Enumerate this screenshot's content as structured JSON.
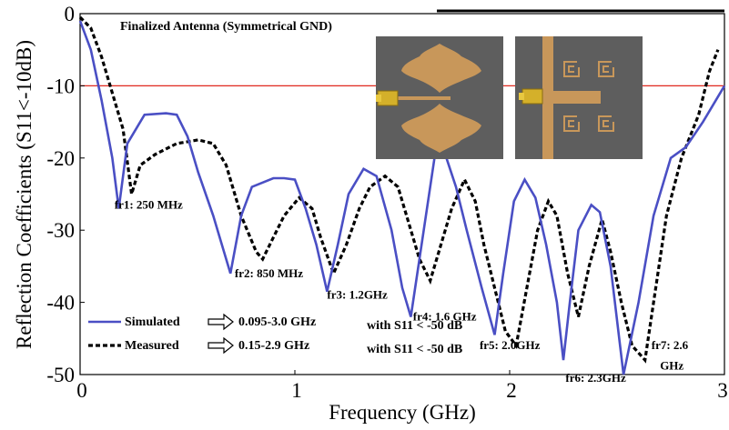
{
  "chart_data": {
    "type": "line",
    "title": "Finalized Antenna (Symmetrical GND)",
    "xlabel": "Frequency (GHz)",
    "ylabel": "Reflection Coefficients (S11<-10dB)",
    "xlim": [
      0,
      3
    ],
    "ylim": [
      -50,
      0
    ],
    "xticks": [
      "0",
      "1",
      "2",
      "3"
    ],
    "yticks": [
      "0",
      "-10",
      "-20",
      "-30",
      "-40",
      "-50"
    ],
    "reference_line": {
      "y": -10,
      "color": "#e0281e"
    },
    "grid": false,
    "legend_position": "bottom-left",
    "series": [
      {
        "name": "Simulated",
        "style": "solid",
        "color": "#4a4fc4",
        "legend_note": "0.095-3.0 GHz",
        "legend_condition": "with S11 < -50 dB",
        "points": [
          [
            0,
            -1
          ],
          [
            0.05,
            -5
          ],
          [
            0.1,
            -12
          ],
          [
            0.15,
            -20
          ],
          [
            0.18,
            -27
          ],
          [
            0.22,
            -18
          ],
          [
            0.3,
            -14
          ],
          [
            0.4,
            -13.8
          ],
          [
            0.45,
            -14
          ],
          [
            0.5,
            -17
          ],
          [
            0.55,
            -22
          ],
          [
            0.62,
            -28
          ],
          [
            0.7,
            -36
          ],
          [
            0.75,
            -28
          ],
          [
            0.8,
            -24
          ],
          [
            0.9,
            -22.8
          ],
          [
            0.95,
            -22.8
          ],
          [
            1.0,
            -23
          ],
          [
            1.05,
            -27
          ],
          [
            1.1,
            -32
          ],
          [
            1.15,
            -38.5
          ],
          [
            1.2,
            -32
          ],
          [
            1.25,
            -25
          ],
          [
            1.32,
            -21.5
          ],
          [
            1.38,
            -22.5
          ],
          [
            1.45,
            -30
          ],
          [
            1.5,
            -38
          ],
          [
            1.54,
            -42
          ],
          [
            1.6,
            -30
          ],
          [
            1.65,
            -20
          ],
          [
            1.7,
            -19.5
          ],
          [
            1.75,
            -24
          ],
          [
            1.8,
            -30
          ],
          [
            1.87,
            -38
          ],
          [
            1.93,
            -44.5
          ],
          [
            1.97,
            -36
          ],
          [
            2.02,
            -26
          ],
          [
            2.07,
            -23
          ],
          [
            2.12,
            -25.5
          ],
          [
            2.17,
            -32
          ],
          [
            2.22,
            -40
          ],
          [
            2.25,
            -48
          ],
          [
            2.28,
            -40
          ],
          [
            2.32,
            -30
          ],
          [
            2.38,
            -26.5
          ],
          [
            2.42,
            -27.5
          ],
          [
            2.47,
            -35
          ],
          [
            2.53,
            -50
          ],
          [
            2.6,
            -40
          ],
          [
            2.67,
            -28
          ],
          [
            2.75,
            -20
          ],
          [
            2.82,
            -18.5
          ],
          [
            2.9,
            -15
          ],
          [
            3.0,
            -10
          ]
        ]
      },
      {
        "name": "Measured",
        "style": "dashed",
        "color": "#000000",
        "legend_note": "0.15-2.9 GHz",
        "legend_condition": "with S11 < -50 dB",
        "points": [
          [
            0,
            -0.5
          ],
          [
            0.05,
            -2
          ],
          [
            0.1,
            -6
          ],
          [
            0.15,
            -11
          ],
          [
            0.2,
            -16
          ],
          [
            0.24,
            -25
          ],
          [
            0.28,
            -21
          ],
          [
            0.35,
            -19.5
          ],
          [
            0.45,
            -18
          ],
          [
            0.55,
            -17.5
          ],
          [
            0.62,
            -18
          ],
          [
            0.68,
            -21
          ],
          [
            0.75,
            -28
          ],
          [
            0.82,
            -33
          ],
          [
            0.85,
            -34
          ],
          [
            0.9,
            -31
          ],
          [
            0.95,
            -28
          ],
          [
            1.02,
            -25.5
          ],
          [
            1.08,
            -27
          ],
          [
            1.12,
            -31
          ],
          [
            1.18,
            -36
          ],
          [
            1.24,
            -32
          ],
          [
            1.3,
            -27
          ],
          [
            1.35,
            -24
          ],
          [
            1.42,
            -22.5
          ],
          [
            1.48,
            -24
          ],
          [
            1.53,
            -29
          ],
          [
            1.58,
            -34
          ],
          [
            1.63,
            -37
          ],
          [
            1.68,
            -32
          ],
          [
            1.73,
            -27
          ],
          [
            1.79,
            -23
          ],
          [
            1.84,
            -26
          ],
          [
            1.88,
            -32
          ],
          [
            1.93,
            -38
          ],
          [
            1.98,
            -44
          ],
          [
            2.03,
            -46
          ],
          [
            2.08,
            -38
          ],
          [
            2.13,
            -30
          ],
          [
            2.18,
            -26
          ],
          [
            2.22,
            -28
          ],
          [
            2.27,
            -36
          ],
          [
            2.32,
            -42
          ],
          [
            2.37,
            -35
          ],
          [
            2.43,
            -28.5
          ],
          [
            2.47,
            -33
          ],
          [
            2.52,
            -40
          ],
          [
            2.57,
            -46
          ],
          [
            2.63,
            -48
          ],
          [
            2.68,
            -38
          ],
          [
            2.73,
            -28
          ],
          [
            2.8,
            -20
          ],
          [
            2.88,
            -14
          ],
          [
            2.93,
            -8
          ],
          [
            2.97,
            -5
          ]
        ]
      }
    ],
    "annotations": [
      {
        "text": "fr1: 250 MHz",
        "x": 0.16,
        "y": -27
      },
      {
        "text": "fr2: 850 MHz",
        "x": 0.72,
        "y": -36.5
      },
      {
        "text": "fr3: 1.2GHz",
        "x": 1.15,
        "y": -39.5
      },
      {
        "text": "fr4: 1.6 GHz",
        "x": 1.55,
        "y": -42.5
      },
      {
        "text": "fr5: 2.0GHz",
        "x": 1.86,
        "y": -46.5
      },
      {
        "text": "fr6: 2.3GHz",
        "x": 2.26,
        "y": -51
      },
      {
        "text": "fr7: 2.6",
        "x": 2.66,
        "y": -46.5
      },
      {
        "text": "GHz",
        "x": 2.7,
        "y": -49.3
      }
    ]
  },
  "inset_photos": [
    {
      "name": "front-view-photo",
      "background": "#5e5e5e",
      "metal": "#c8975a"
    },
    {
      "name": "back-view-photo",
      "background": "#5e5e5e",
      "metal": "#c8975a"
    }
  ]
}
